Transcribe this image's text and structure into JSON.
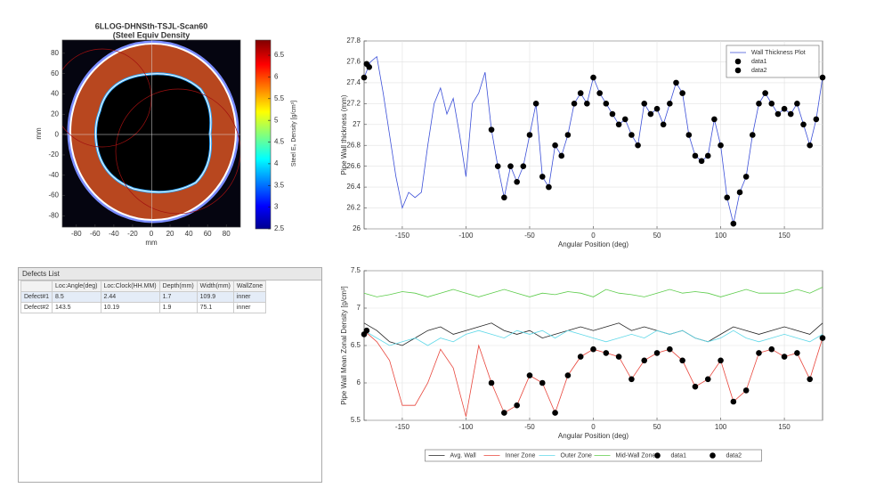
{
  "chart_data": [
    {
      "type": "heatmap",
      "title": "6LLOG-DHNSth-TSJL-Scan60",
      "subtitle": "(Steel Equiv Density",
      "x_label": "mm",
      "y_label": "mm",
      "xlim": [
        -95,
        95
      ],
      "ylim": [
        -91,
        93
      ],
      "xticks": [
        -80,
        -60,
        -40,
        -20,
        0,
        20,
        40,
        60,
        80
      ],
      "yticks": [
        -80,
        -60,
        -40,
        -20,
        0,
        20,
        40,
        60,
        80
      ],
      "colormap": "jet",
      "clim": [
        2.5,
        6.85
      ],
      "cticks": [
        2.5,
        3,
        3.5,
        4,
        4.5,
        5,
        5.5,
        6,
        6.5
      ],
      "colorbar_label": "Steel E₀ Density [g/cm³]"
    },
    {
      "type": "line",
      "x_label": "Angular Position (deg)",
      "y_label": "Pipe Wall thickness (mm)",
      "xlim": [
        -180,
        180
      ],
      "ylim": [
        26,
        27.8
      ],
      "xticks": [
        -150,
        -100,
        -50,
        0,
        50,
        100,
        150
      ],
      "yticks": [
        26,
        26.2,
        26.4,
        26.6,
        26.8,
        27,
        27.2,
        27.4,
        27.6,
        27.8
      ],
      "grid": true,
      "legend": "upper right",
      "series": [
        {
          "name": "Wall Thickness Plot",
          "color": "#3b4fd8",
          "style": "line",
          "x": [
            -180,
            -175,
            -170,
            -165,
            -160,
            -155,
            -150,
            -145,
            -140,
            -135,
            -130,
            -125,
            -120,
            -115,
            -110,
            -105,
            -100,
            -95,
            -90,
            -85,
            -80,
            -75,
            -70,
            -65,
            -60,
            -55,
            -50,
            -45,
            -40,
            -35,
            -30,
            -25,
            -20,
            -15,
            -10,
            -5,
            0,
            5,
            10,
            15,
            20,
            25,
            30,
            35,
            40,
            45,
            50,
            55,
            60,
            65,
            70,
            75,
            80,
            85,
            90,
            95,
            100,
            105,
            110,
            115,
            120,
            125,
            130,
            135,
            140,
            145,
            150,
            155,
            160,
            165,
            170,
            175,
            180
          ],
          "values": [
            27.45,
            27.6,
            27.65,
            27.3,
            26.9,
            26.5,
            26.2,
            26.35,
            26.3,
            26.35,
            26.8,
            27.2,
            27.35,
            27.1,
            27.25,
            26.9,
            26.5,
            27.2,
            27.3,
            27.5,
            26.95,
            26.6,
            26.3,
            26.6,
            26.45,
            26.6,
            26.9,
            27.2,
            26.5,
            26.4,
            26.8,
            26.7,
            26.9,
            27.2,
            27.3,
            27.2,
            27.45,
            27.3,
            27.2,
            27.1,
            27,
            27.05,
            26.9,
            26.8,
            27.2,
            27.1,
            27.15,
            27,
            27.2,
            27.4,
            27.3,
            26.9,
            26.7,
            26.65,
            26.7,
            27.05,
            26.8,
            26.3,
            26.05,
            26.35,
            26.5,
            26.9,
            27.2,
            27.3,
            27.2,
            27.1,
            27.15,
            27.1,
            27.2,
            27,
            26.8,
            27.05,
            27.45
          ]
        },
        {
          "name": "data1",
          "color": "#000000",
          "style": "markers",
          "x": [
            -80,
            -75,
            -70,
            -65,
            -60,
            -55,
            -50,
            -45,
            -40,
            -35,
            -30,
            -25,
            -20,
            -15,
            -10,
            -5,
            0,
            5,
            10,
            15,
            20,
            25,
            30,
            35,
            40,
            45,
            50,
            55,
            60,
            65,
            70,
            75,
            80,
            85,
            90,
            95,
            100,
            105,
            110,
            115,
            120,
            125,
            130,
            135,
            140,
            145,
            150,
            155,
            160,
            165,
            170,
            175,
            180
          ],
          "values": [
            26.95,
            26.6,
            26.3,
            26.6,
            26.45,
            26.6,
            26.9,
            27.2,
            26.5,
            26.4,
            26.8,
            26.7,
            26.9,
            27.2,
            27.3,
            27.2,
            27.45,
            27.3,
            27.2,
            27.1,
            27,
            27.05,
            26.9,
            26.8,
            27.2,
            27.1,
            27.15,
            27,
            27.2,
            27.4,
            27.3,
            26.9,
            26.7,
            26.65,
            26.7,
            27.05,
            26.8,
            26.3,
            26.05,
            26.35,
            26.5,
            26.9,
            27.2,
            27.3,
            27.2,
            27.1,
            27.15,
            27.1,
            27.2,
            27,
            26.8,
            27.05,
            27.45
          ]
        },
        {
          "name": "data2",
          "color": "#000000",
          "style": "markers",
          "x": [
            -180,
            -178,
            -176
          ],
          "values": [
            27.45,
            27.58,
            27.55
          ]
        }
      ]
    },
    {
      "type": "line",
      "x_label": "Angular Position (deg)",
      "y_label": "Pipe Wall Mean Zonal Density [g/cm³]",
      "xlim": [
        -180,
        180
      ],
      "ylim": [
        5.5,
        7.5
      ],
      "xticks": [
        -150,
        -100,
        -50,
        0,
        50,
        100,
        150
      ],
      "yticks": [
        5.5,
        6,
        6.5,
        7,
        7.5
      ],
      "grid": true,
      "legend": "below",
      "series": [
        {
          "name": "Avg. Wall",
          "color": "#222222",
          "style": "line",
          "x": [
            -180,
            -170,
            -160,
            -150,
            -140,
            -130,
            -120,
            -110,
            -100,
            -90,
            -80,
            -70,
            -60,
            -50,
            -40,
            -30,
            -20,
            -10,
            0,
            10,
            20,
            30,
            40,
            50,
            60,
            70,
            80,
            90,
            100,
            110,
            120,
            130,
            140,
            150,
            160,
            170,
            180
          ],
          "values": [
            6.8,
            6.7,
            6.55,
            6.5,
            6.6,
            6.7,
            6.75,
            6.65,
            6.7,
            6.75,
            6.8,
            6.7,
            6.65,
            6.7,
            6.6,
            6.65,
            6.7,
            6.75,
            6.7,
            6.75,
            6.8,
            6.7,
            6.75,
            6.7,
            6.65,
            6.7,
            6.6,
            6.55,
            6.65,
            6.75,
            6.7,
            6.65,
            6.7,
            6.75,
            6.7,
            6.65,
            6.8
          ]
        },
        {
          "name": "Inner Zone",
          "color": "#e8463c",
          "style": "line",
          "x": [
            -180,
            -170,
            -160,
            -150,
            -140,
            -130,
            -120,
            -110,
            -100,
            -90,
            -80,
            -70,
            -60,
            -50,
            -40,
            -30,
            -20,
            -10,
            0,
            10,
            20,
            30,
            40,
            50,
            60,
            70,
            80,
            90,
            100,
            110,
            120,
            130,
            140,
            150,
            160,
            170,
            180
          ],
          "values": [
            6.7,
            6.55,
            6.3,
            5.7,
            5.7,
            6,
            6.45,
            6.2,
            5.55,
            6.5,
            6,
            5.6,
            5.7,
            6.1,
            6,
            5.6,
            6.1,
            6.35,
            6.45,
            6.4,
            6.35,
            6.05,
            6.3,
            6.4,
            6.45,
            6.3,
            5.95,
            6.05,
            6.3,
            5.75,
            5.9,
            6.4,
            6.45,
            6.35,
            6.4,
            6.05,
            6.6
          ]
        },
        {
          "name": "Outer Zone",
          "color": "#5fd8e8",
          "style": "line",
          "x": [
            -180,
            -170,
            -160,
            -150,
            -140,
            -130,
            -120,
            -110,
            -100,
            -90,
            -80,
            -70,
            -60,
            -50,
            -40,
            -30,
            -20,
            -10,
            0,
            10,
            20,
            30,
            40,
            50,
            60,
            70,
            80,
            90,
            100,
            110,
            120,
            130,
            140,
            150,
            160,
            170,
            180
          ],
          "values": [
            6.7,
            6.6,
            6.5,
            6.55,
            6.6,
            6.5,
            6.6,
            6.55,
            6.65,
            6.7,
            6.65,
            6.6,
            6.7,
            6.65,
            6.7,
            6.6,
            6.7,
            6.65,
            6.6,
            6.55,
            6.6,
            6.65,
            6.6,
            6.7,
            6.65,
            6.7,
            6.6,
            6.55,
            6.6,
            6.7,
            6.6,
            6.55,
            6.6,
            6.65,
            6.6,
            6.55,
            6.65
          ]
        },
        {
          "name": "Mid-Wall Zone",
          "color": "#5ccc4a",
          "style": "line",
          "x": [
            -180,
            -170,
            -160,
            -150,
            -140,
            -130,
            -120,
            -110,
            -100,
            -90,
            -80,
            -70,
            -60,
            -50,
            -40,
            -30,
            -20,
            -10,
            0,
            10,
            20,
            30,
            40,
            50,
            60,
            70,
            80,
            90,
            100,
            110,
            120,
            130,
            140,
            150,
            160,
            170,
            180
          ],
          "values": [
            7.2,
            7.15,
            7.18,
            7.22,
            7.2,
            7.15,
            7.2,
            7.25,
            7.2,
            7.15,
            7.2,
            7.25,
            7.2,
            7.15,
            7.2,
            7.18,
            7.22,
            7.2,
            7.15,
            7.25,
            7.2,
            7.18,
            7.15,
            7.2,
            7.25,
            7.2,
            7.22,
            7.2,
            7.15,
            7.2,
            7.25,
            7.2,
            7.2,
            7.2,
            7.25,
            7.2,
            7.28
          ]
        },
        {
          "name": "data1",
          "color": "#000000",
          "style": "markers",
          "x": [
            -80,
            -70,
            -60,
            -50,
            -40,
            -30,
            -20,
            -10,
            0,
            10,
            20,
            30,
            40,
            50,
            60,
            70,
            80,
            90,
            100,
            110,
            120,
            130,
            140,
            150,
            160,
            170,
            180
          ],
          "values": [
            6,
            5.6,
            5.7,
            6.1,
            6,
            5.6,
            6.1,
            6.35,
            6.45,
            6.4,
            6.35,
            6.05,
            6.3,
            6.4,
            6.45,
            6.3,
            5.95,
            6.05,
            6.3,
            5.75,
            5.9,
            6.4,
            6.45,
            6.35,
            6.4,
            6.05,
            6.6
          ]
        },
        {
          "name": "data2",
          "color": "#000000",
          "style": "markers",
          "x": [
            -180,
            -178
          ],
          "values": [
            6.65,
            6.7
          ]
        }
      ]
    }
  ],
  "defects": {
    "title": "Defects List",
    "columns": [
      "Loc:Angle(deg)",
      "Loc:Clock(HH.MM)",
      "Depth(mm)",
      "Width(mm)",
      "WallZone"
    ],
    "rows": [
      [
        "Defect#1",
        "8.5",
        "2.44",
        "1.7",
        "109.9",
        "inner"
      ],
      [
        "Defect#2",
        "143.5",
        "10.19",
        "1.9",
        "75.1",
        "inner"
      ]
    ]
  }
}
